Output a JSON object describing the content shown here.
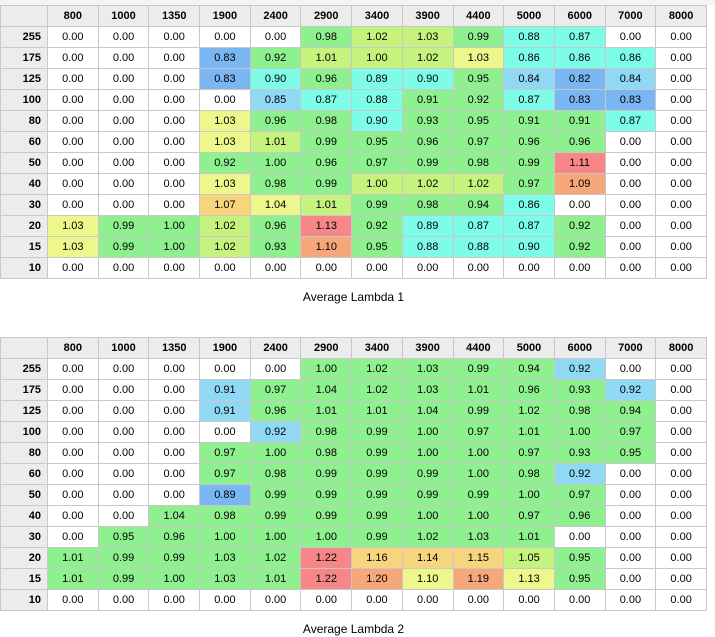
{
  "columns": [
    "800",
    "1000",
    "1350",
    "1900",
    "2400",
    "2900",
    "3400",
    "3900",
    "4400",
    "5000",
    "6000",
    "7000",
    "8000"
  ],
  "colors": {
    "empty": "#ffffff",
    "cyan": "#7dfde8",
    "green": "#8ef08e",
    "yellowgreen": "#c6f27e",
    "yellow": "#eef78c",
    "lightorange": "#f6d57e",
    "orange": "#f6a87a",
    "red": "#f78787",
    "blue": "#79b6f2",
    "lightblue": "#8fd9f4",
    "header": "#ececec"
  },
  "tables": [
    {
      "caption": "Average Lambda 1",
      "rows": [
        {
          "label": "255",
          "cells": [
            "0.00",
            "0.00",
            "0.00",
            "0.00",
            "0.00",
            "0.98",
            "1.02",
            "1.03",
            "0.99",
            "0.88",
            "0.87",
            "0.00",
            "0.00"
          ],
          "shades": [
            "",
            "",
            "",
            "",
            "",
            "green",
            "yellowgreen",
            "yellowgreen",
            "green",
            "cyan",
            "cyan",
            "",
            ""
          ]
        },
        {
          "label": "175",
          "cells": [
            "0.00",
            "0.00",
            "0.00",
            "0.83",
            "0.92",
            "1.01",
            "1.00",
            "1.02",
            "1.03",
            "0.86",
            "0.86",
            "0.86",
            "0.00"
          ],
          "shades": [
            "",
            "",
            "",
            "blue",
            "green",
            "yellowgreen",
            "yellowgreen",
            "yellowgreen",
            "yellow",
            "cyan",
            "cyan",
            "cyan",
            ""
          ]
        },
        {
          "label": "125",
          "cells": [
            "0.00",
            "0.00",
            "0.00",
            "0.83",
            "0.90",
            "0.96",
            "0.89",
            "0.90",
            "0.95",
            "0.84",
            "0.82",
            "0.84",
            "0.00"
          ],
          "shades": [
            "",
            "",
            "",
            "blue",
            "cyan",
            "green",
            "cyan",
            "cyan",
            "green",
            "lightblue",
            "blue",
            "lightblue",
            ""
          ]
        },
        {
          "label": "100",
          "cells": [
            "0.00",
            "0.00",
            "0.00",
            "0.00",
            "0.85",
            "0.87",
            "0.88",
            "0.91",
            "0.92",
            "0.87",
            "0.83",
            "0.83",
            "0.00"
          ],
          "shades": [
            "",
            "",
            "",
            "",
            "lightblue",
            "cyan",
            "cyan",
            "green",
            "green",
            "cyan",
            "blue",
            "blue",
            ""
          ]
        },
        {
          "label": "80",
          "cells": [
            "0.00",
            "0.00",
            "0.00",
            "1.03",
            "0.96",
            "0.98",
            "0.90",
            "0.93",
            "0.95",
            "0.91",
            "0.91",
            "0.87",
            "0.00"
          ],
          "shades": [
            "",
            "",
            "",
            "yellow",
            "green",
            "green",
            "cyan",
            "green",
            "green",
            "green",
            "green",
            "cyan",
            ""
          ]
        },
        {
          "label": "60",
          "cells": [
            "0.00",
            "0.00",
            "0.00",
            "1.03",
            "1.01",
            "0.99",
            "0.95",
            "0.96",
            "0.97",
            "0.96",
            "0.96",
            "0.00",
            "0.00"
          ],
          "shades": [
            "",
            "",
            "",
            "yellow",
            "yellowgreen",
            "green",
            "green",
            "green",
            "green",
            "green",
            "green",
            "",
            ""
          ]
        },
        {
          "label": "50",
          "cells": [
            "0.00",
            "0.00",
            "0.00",
            "0.92",
            "1.00",
            "0.96",
            "0.97",
            "0.99",
            "0.98",
            "0.99",
            "1.11",
            "0.00",
            "0.00"
          ],
          "shades": [
            "",
            "",
            "",
            "green",
            "green",
            "green",
            "green",
            "green",
            "green",
            "green",
            "red",
            "",
            ""
          ]
        },
        {
          "label": "40",
          "cells": [
            "0.00",
            "0.00",
            "0.00",
            "1.03",
            "0.98",
            "0.99",
            "1.00",
            "1.02",
            "1.02",
            "0.97",
            "1.09",
            "0.00",
            "0.00"
          ],
          "shades": [
            "",
            "",
            "",
            "yellow",
            "green",
            "green",
            "yellowgreen",
            "yellowgreen",
            "yellowgreen",
            "green",
            "orange",
            "",
            ""
          ]
        },
        {
          "label": "30",
          "cells": [
            "0.00",
            "0.00",
            "0.00",
            "1.07",
            "1.04",
            "1.01",
            "0.99",
            "0.98",
            "0.94",
            "0.86",
            "0.00",
            "0.00",
            "0.00"
          ],
          "shades": [
            "",
            "",
            "",
            "lightorange",
            "yellow",
            "yellowgreen",
            "green",
            "green",
            "green",
            "cyan",
            "",
            "",
            ""
          ]
        },
        {
          "label": "20",
          "cells": [
            "1.03",
            "0.99",
            "1.00",
            "1.02",
            "0.96",
            "1.13",
            "0.92",
            "0.89",
            "0.87",
            "0.87",
            "0.92",
            "0.00",
            "0.00"
          ],
          "shades": [
            "yellow",
            "green",
            "green",
            "yellowgreen",
            "green",
            "red",
            "green",
            "cyan",
            "cyan",
            "cyan",
            "green",
            "",
            ""
          ]
        },
        {
          "label": "15",
          "cells": [
            "1.03",
            "0.99",
            "1.00",
            "1.02",
            "0.93",
            "1.10",
            "0.95",
            "0.88",
            "0.88",
            "0.90",
            "0.92",
            "0.00",
            "0.00"
          ],
          "shades": [
            "yellow",
            "green",
            "green",
            "yellowgreen",
            "green",
            "orange",
            "green",
            "cyan",
            "cyan",
            "cyan",
            "green",
            "",
            ""
          ]
        },
        {
          "label": "10",
          "cells": [
            "0.00",
            "0.00",
            "0.00",
            "0.00",
            "0.00",
            "0.00",
            "0.00",
            "0.00",
            "0.00",
            "0.00",
            "0.00",
            "0.00",
            "0.00"
          ],
          "shades": [
            "",
            "",
            "",
            "",
            "",
            "",
            "",
            "",
            "",
            "",
            "",
            "",
            ""
          ]
        }
      ]
    },
    {
      "caption": "Average Lambda 2",
      "rows": [
        {
          "label": "255",
          "cells": [
            "0.00",
            "0.00",
            "0.00",
            "0.00",
            "0.00",
            "1.00",
            "1.02",
            "1.03",
            "0.99",
            "0.94",
            "0.92",
            "0.00",
            "0.00"
          ],
          "shades": [
            "",
            "",
            "",
            "",
            "",
            "green",
            "green",
            "green",
            "green",
            "green",
            "lightblue",
            "",
            ""
          ]
        },
        {
          "label": "175",
          "cells": [
            "0.00",
            "0.00",
            "0.00",
            "0.91",
            "0.97",
            "1.04",
            "1.02",
            "1.03",
            "1.01",
            "0.96",
            "0.93",
            "0.92",
            "0.00"
          ],
          "shades": [
            "",
            "",
            "",
            "lightblue",
            "green",
            "green",
            "green",
            "green",
            "green",
            "green",
            "green",
            "lightblue",
            ""
          ]
        },
        {
          "label": "125",
          "cells": [
            "0.00",
            "0.00",
            "0.00",
            "0.91",
            "0.96",
            "1.01",
            "1.01",
            "1.04",
            "0.99",
            "1.02",
            "0.98",
            "0.94",
            "0.00"
          ],
          "shades": [
            "",
            "",
            "",
            "lightblue",
            "green",
            "green",
            "green",
            "green",
            "green",
            "green",
            "green",
            "green",
            ""
          ]
        },
        {
          "label": "100",
          "cells": [
            "0.00",
            "0.00",
            "0.00",
            "0.00",
            "0.92",
            "0.98",
            "0.99",
            "1.00",
            "0.97",
            "1.01",
            "1.00",
            "0.97",
            "0.00"
          ],
          "shades": [
            "",
            "",
            "",
            "",
            "lightblue",
            "green",
            "green",
            "green",
            "green",
            "green",
            "green",
            "green",
            ""
          ]
        },
        {
          "label": "80",
          "cells": [
            "0.00",
            "0.00",
            "0.00",
            "0.97",
            "1.00",
            "0.98",
            "0.99",
            "1.00",
            "1.00",
            "0.97",
            "0.93",
            "0.95",
            "0.00"
          ],
          "shades": [
            "",
            "",
            "",
            "green",
            "green",
            "green",
            "green",
            "green",
            "green",
            "green",
            "green",
            "green",
            ""
          ]
        },
        {
          "label": "60",
          "cells": [
            "0.00",
            "0.00",
            "0.00",
            "0.97",
            "0.98",
            "0.99",
            "0.99",
            "0.99",
            "1.00",
            "0.98",
            "0.92",
            "0.00",
            "0.00"
          ],
          "shades": [
            "",
            "",
            "",
            "green",
            "green",
            "green",
            "green",
            "green",
            "green",
            "green",
            "lightblue",
            "",
            ""
          ]
        },
        {
          "label": "50",
          "cells": [
            "0.00",
            "0.00",
            "0.00",
            "0.89",
            "0.99",
            "0.99",
            "0.99",
            "0.99",
            "0.99",
            "1.00",
            "0.97",
            "0.00",
            "0.00"
          ],
          "shades": [
            "",
            "",
            "",
            "blue",
            "green",
            "green",
            "green",
            "green",
            "green",
            "green",
            "green",
            "",
            ""
          ]
        },
        {
          "label": "40",
          "cells": [
            "0.00",
            "0.00",
            "1.04",
            "0.98",
            "0.99",
            "0.99",
            "0.99",
            "1.00",
            "1.00",
            "0.97",
            "0.96",
            "0.00",
            "0.00"
          ],
          "shades": [
            "",
            "",
            "green",
            "green",
            "green",
            "green",
            "green",
            "green",
            "green",
            "green",
            "green",
            "",
            ""
          ]
        },
        {
          "label": "30",
          "cells": [
            "0.00",
            "0.95",
            "0.96",
            "1.00",
            "1.00",
            "1.00",
            "0.99",
            "1.02",
            "1.03",
            "1.01",
            "0.00",
            "0.00",
            "0.00"
          ],
          "shades": [
            "",
            "green",
            "green",
            "green",
            "green",
            "green",
            "green",
            "green",
            "green",
            "green",
            "",
            "",
            ""
          ]
        },
        {
          "label": "20",
          "cells": [
            "1.01",
            "0.99",
            "0.99",
            "1.03",
            "1.02",
            "1.22",
            "1.16",
            "1.14",
            "1.15",
            "1.05",
            "0.95",
            "0.00",
            "0.00"
          ],
          "shades": [
            "green",
            "green",
            "green",
            "green",
            "green",
            "red",
            "lightorange",
            "lightorange",
            "lightorange",
            "yellowgreen",
            "green",
            "",
            ""
          ]
        },
        {
          "label": "15",
          "cells": [
            "1.01",
            "0.99",
            "1.00",
            "1.03",
            "1.01",
            "1.22",
            "1.20",
            "1.10",
            "1.19",
            "1.13",
            "0.95",
            "0.00",
            "0.00"
          ],
          "shades": [
            "green",
            "green",
            "green",
            "green",
            "green",
            "red",
            "orange",
            "yellow",
            "orange",
            "yellow",
            "green",
            "",
            ""
          ]
        },
        {
          "label": "10",
          "cells": [
            "0.00",
            "0.00",
            "0.00",
            "0.00",
            "0.00",
            "0.00",
            "0.00",
            "0.00",
            "0.00",
            "0.00",
            "0.00",
            "0.00",
            "0.00"
          ],
          "shades": [
            "",
            "",
            "",
            "",
            "",
            "",
            "",
            "",
            "",
            "",
            "",
            "",
            ""
          ]
        }
      ]
    }
  ]
}
